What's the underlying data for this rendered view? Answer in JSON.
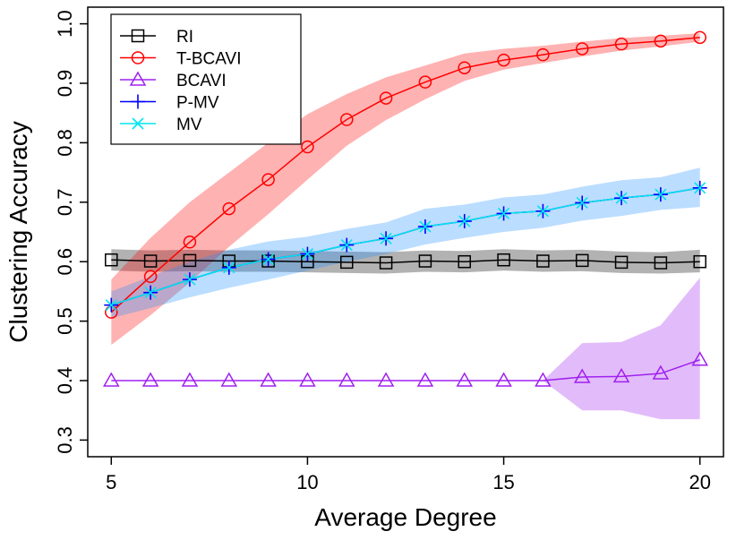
{
  "chart_data": {
    "type": "line",
    "title": "",
    "xlabel": "Average Degree",
    "ylabel": "Clustering Accuracy",
    "xlim": [
      5,
      20
    ],
    "ylim": [
      0.3,
      1.0
    ],
    "xticks": [
      5,
      10,
      15,
      20
    ],
    "yticks": [
      0.3,
      0.4,
      0.5,
      0.6,
      0.7,
      0.8,
      0.9,
      1.0
    ],
    "ytick_labels": [
      "0.3",
      "0.4",
      "0.5",
      "0.6",
      "0.7",
      "0.8",
      "0.9",
      "1.0"
    ],
    "grid": false,
    "legend_position": "top-left",
    "x": [
      5,
      6,
      7,
      8,
      9,
      10,
      11,
      12,
      13,
      14,
      15,
      16,
      17,
      18,
      19,
      20
    ],
    "series": [
      {
        "name": "RI",
        "color": "#000000",
        "band_color": "#000000",
        "marker": "square",
        "values": [
          0.603,
          0.601,
          0.602,
          0.601,
          0.601,
          0.6,
          0.599,
          0.598,
          0.601,
          0.6,
          0.603,
          0.601,
          0.602,
          0.599,
          0.598,
          0.6
        ],
        "lower": [
          0.585,
          0.583,
          0.584,
          0.583,
          0.583,
          0.582,
          0.581,
          0.58,
          0.583,
          0.582,
          0.585,
          0.583,
          0.584,
          0.581,
          0.58,
          0.582
        ],
        "upper": [
          0.621,
          0.619,
          0.62,
          0.619,
          0.619,
          0.618,
          0.617,
          0.616,
          0.619,
          0.618,
          0.621,
          0.619,
          0.62,
          0.617,
          0.616,
          0.62
        ]
      },
      {
        "name": "T-BCAVI",
        "color": "#ff0000",
        "band_color": "#ff0000",
        "marker": "circle",
        "values": [
          0.515,
          0.575,
          0.633,
          0.689,
          0.738,
          0.793,
          0.839,
          0.875,
          0.902,
          0.926,
          0.939,
          0.948,
          0.958,
          0.966,
          0.971,
          0.977
        ],
        "lower": [
          0.46,
          0.51,
          0.565,
          0.625,
          0.68,
          0.738,
          0.795,
          0.838,
          0.873,
          0.904,
          0.923,
          0.934,
          0.945,
          0.955,
          0.962,
          0.97
        ],
        "upper": [
          0.57,
          0.64,
          0.7,
          0.75,
          0.8,
          0.848,
          0.882,
          0.91,
          0.93,
          0.95,
          0.958,
          0.963,
          0.97,
          0.976,
          0.98,
          0.984
        ]
      },
      {
        "name": "BCAVI",
        "color": "#a020f0",
        "band_color": "#a020f0",
        "marker": "triangle",
        "values": [
          0.4,
          0.4,
          0.4,
          0.4,
          0.4,
          0.4,
          0.4,
          0.4,
          0.4,
          0.4,
          0.4,
          0.4,
          0.406,
          0.407,
          0.412,
          0.435
        ],
        "lower": [
          0.4,
          0.4,
          0.4,
          0.4,
          0.4,
          0.4,
          0.4,
          0.4,
          0.4,
          0.4,
          0.4,
          0.4,
          0.35,
          0.35,
          0.335,
          0.335
        ],
        "upper": [
          0.4,
          0.4,
          0.4,
          0.4,
          0.4,
          0.4,
          0.4,
          0.4,
          0.4,
          0.4,
          0.4,
          0.4,
          0.463,
          0.465,
          0.493,
          0.573
        ]
      },
      {
        "name": "P-MV",
        "color": "#0000ff",
        "band_color": "#1e90ff",
        "marker": "plus",
        "values": [
          0.527,
          0.548,
          0.57,
          0.59,
          0.604,
          0.613,
          0.628,
          0.639,
          0.659,
          0.668,
          0.681,
          0.685,
          0.699,
          0.707,
          0.713,
          0.724
        ],
        "lower": [
          0.505,
          0.522,
          0.54,
          0.556,
          0.57,
          0.585,
          0.6,
          0.613,
          0.629,
          0.64,
          0.65,
          0.657,
          0.669,
          0.677,
          0.687,
          0.692
        ],
        "upper": [
          0.55,
          0.575,
          0.6,
          0.62,
          0.634,
          0.642,
          0.655,
          0.666,
          0.689,
          0.696,
          0.708,
          0.713,
          0.726,
          0.737,
          0.742,
          0.758
        ]
      },
      {
        "name": "MV",
        "color": "#00e5ee",
        "band_color": "#1e90ff",
        "marker": "cross",
        "values": [
          0.527,
          0.548,
          0.57,
          0.59,
          0.604,
          0.613,
          0.628,
          0.639,
          0.659,
          0.668,
          0.681,
          0.685,
          0.699,
          0.707,
          0.713,
          0.724
        ]
      }
    ]
  }
}
